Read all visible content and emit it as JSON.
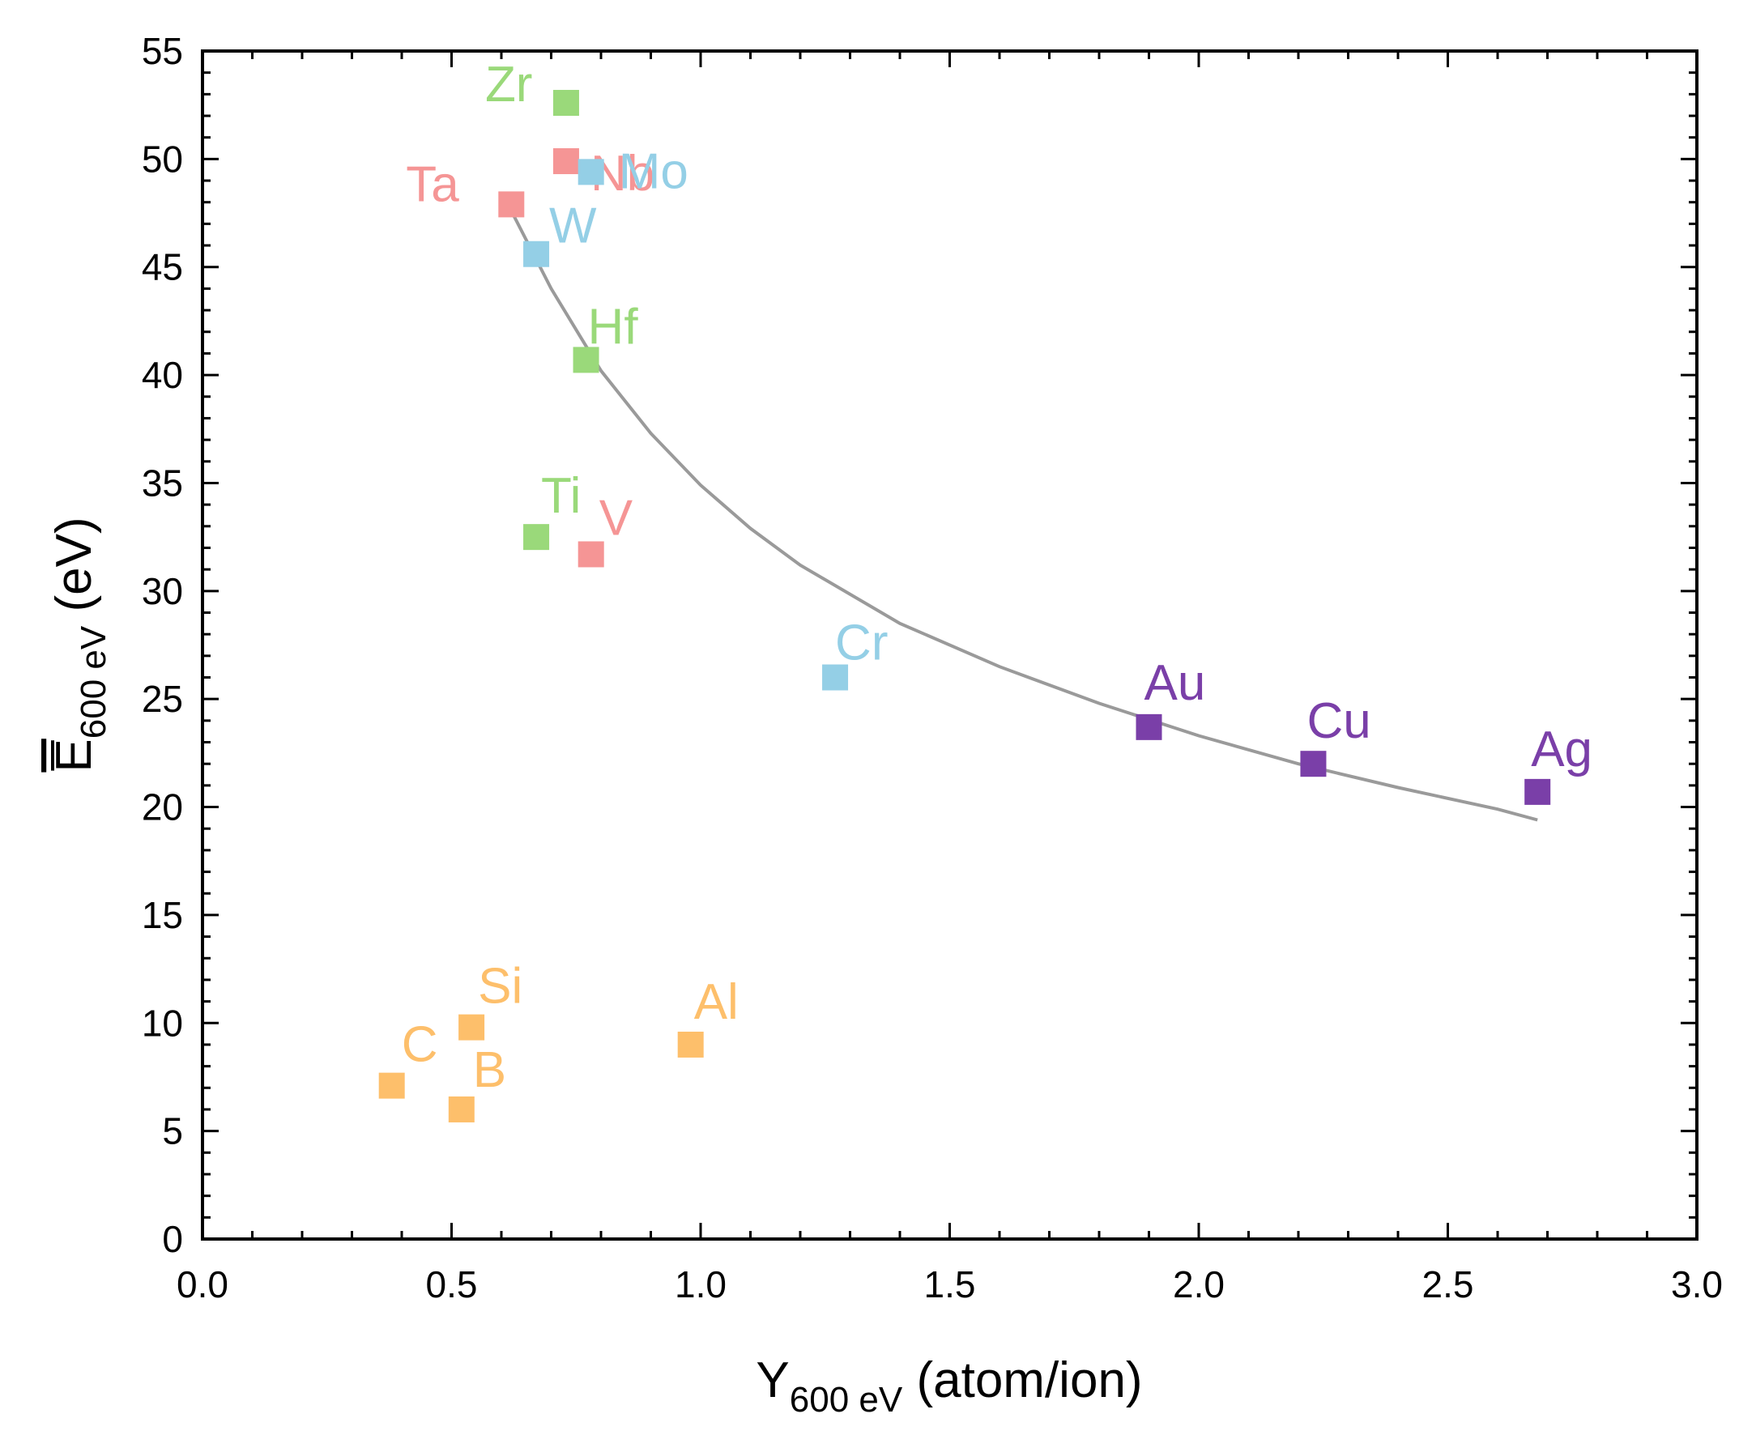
{
  "chart_data": {
    "type": "scatter",
    "title": "",
    "xlabel": {
      "main": "Y",
      "sub": "600 eV",
      "unit": " (atom/ion)"
    },
    "ylabel": {
      "main": "E",
      "sub": "600 eV",
      "unit": " (eV)",
      "overline": true
    },
    "xlim": [
      0,
      3
    ],
    "ylim": [
      0,
      55
    ],
    "x_ticks": [
      "0.0",
      "0.5",
      "1.0",
      "1.5",
      "2.0",
      "2.5",
      "3.0"
    ],
    "x_tick_values": [
      0,
      0.5,
      1.0,
      1.5,
      2.0,
      2.5,
      3.0
    ],
    "y_ticks": [
      "0",
      "5",
      "10",
      "15",
      "20",
      "25",
      "30",
      "35",
      "40",
      "45",
      "50",
      "55"
    ],
    "y_tick_values": [
      0,
      5,
      10,
      15,
      20,
      25,
      30,
      35,
      40,
      45,
      50,
      55
    ],
    "grid": false,
    "legend": false,
    "points": [
      {
        "label": "Zr",
        "x": 0.73,
        "y": 52.6,
        "color": "#9ad97a"
      },
      {
        "label": "Nb",
        "x": 0.73,
        "y": 49.9,
        "color": "#f59595"
      },
      {
        "label": "Ta",
        "x": 0.62,
        "y": 47.9,
        "color": "#f59595"
      },
      {
        "label": "Mo",
        "x": 0.78,
        "y": 49.4,
        "color": "#94cfe6"
      },
      {
        "label": "W",
        "x": 0.67,
        "y": 45.6,
        "color": "#94cfe6"
      },
      {
        "label": "Hf",
        "x": 0.77,
        "y": 40.7,
        "color": "#9ad97a"
      },
      {
        "label": "Ti",
        "x": 0.67,
        "y": 32.5,
        "color": "#9ad97a"
      },
      {
        "label": "V",
        "x": 0.78,
        "y": 31.7,
        "color": "#f59595"
      },
      {
        "label": "Cr",
        "x": 1.27,
        "y": 26.0,
        "color": "#94cfe6"
      },
      {
        "label": "Au",
        "x": 1.9,
        "y": 23.7,
        "color": "#7a3fa8"
      },
      {
        "label": "Cu",
        "x": 2.23,
        "y": 22.0,
        "color": "#7a3fa8"
      },
      {
        "label": "Ag",
        "x": 2.68,
        "y": 20.7,
        "color": "#7a3fa8"
      },
      {
        "label": "Si",
        "x": 0.54,
        "y": 9.8,
        "color": "#fdbf6b"
      },
      {
        "label": "Al",
        "x": 0.98,
        "y": 9.0,
        "color": "#fdbf6b"
      },
      {
        "label": "C",
        "x": 0.38,
        "y": 7.1,
        "color": "#fdbf6b"
      },
      {
        "label": "B",
        "x": 0.52,
        "y": 6.0,
        "color": "#fdbf6b"
      }
    ],
    "fit_curve": {
      "color": "#9a9a9a",
      "points": [
        [
          0.62,
          47.6
        ],
        [
          0.7,
          44.0
        ],
        [
          0.8,
          40.2
        ],
        [
          0.9,
          37.3
        ],
        [
          1.0,
          34.9
        ],
        [
          1.1,
          32.9
        ],
        [
          1.2,
          31.2
        ],
        [
          1.4,
          28.5
        ],
        [
          1.6,
          26.5
        ],
        [
          1.8,
          24.8
        ],
        [
          2.0,
          23.3
        ],
        [
          2.2,
          22.0
        ],
        [
          2.4,
          20.9
        ],
        [
          2.6,
          19.9
        ],
        [
          2.68,
          19.4
        ]
      ]
    }
  }
}
